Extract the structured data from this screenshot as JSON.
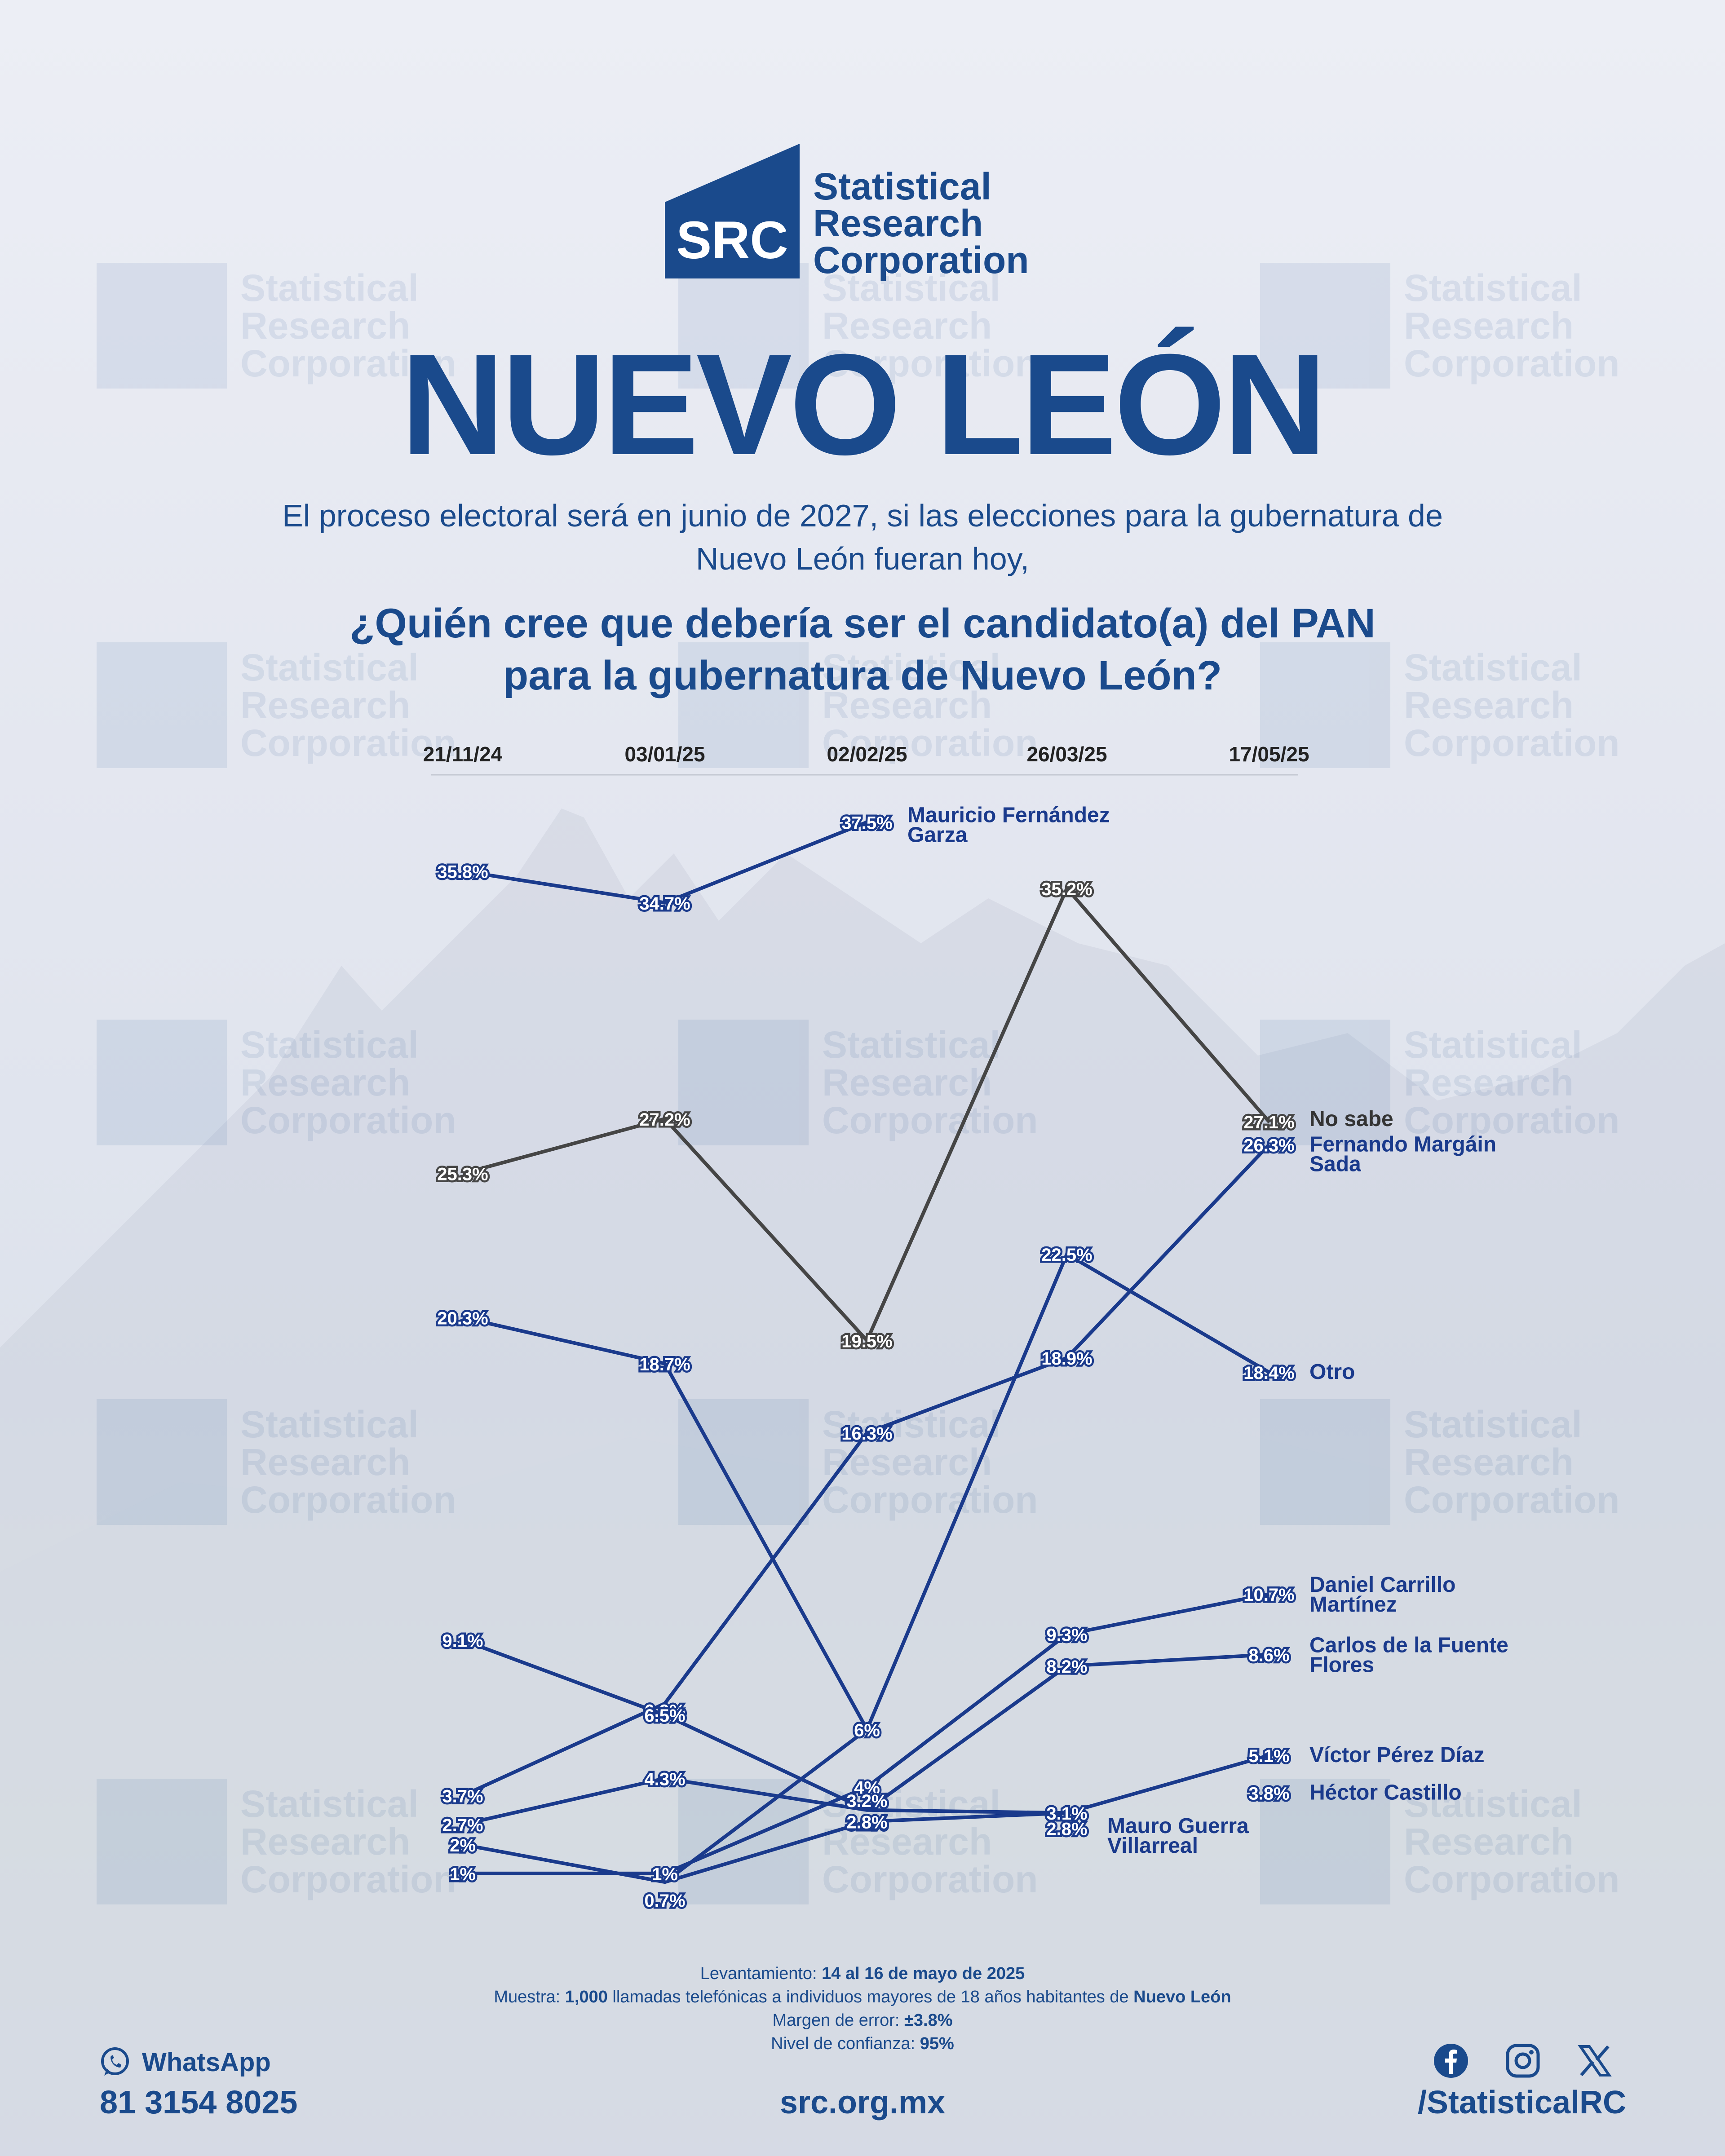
{
  "logo": {
    "mark_text": "SRC",
    "line1": "Statistical",
    "line2": "Research",
    "line3": "Corporation"
  },
  "title": "NUEVO LEÓN",
  "intro": "El proceso electoral será en junio de 2027, si las elecciones para la gubernatura de Nuevo León fueran hoy,",
  "question_line1": "¿Quién cree que debería ser el candidato(a) del PAN",
  "question_line2": "para la gubernatura de Nuevo León?",
  "colors": {
    "brand": "#1a4a8c",
    "candidate": "#1a3a8c",
    "no_sabe": "#454545"
  },
  "chart_data": {
    "type": "line",
    "categories": [
      "21/11/24",
      "03/01/25",
      "02/02/25",
      "26/03/25",
      "17/05/25"
    ],
    "series": [
      {
        "name": "Mauricio Fernández Garza",
        "values": [
          35.8,
          34.7,
          37.5,
          null,
          null
        ],
        "labels": [
          "35.8%",
          "34.7%",
          "37.5%",
          null,
          null
        ],
        "color": "#1a3a8c"
      },
      {
        "name": "No sabe",
        "values": [
          25.3,
          27.2,
          19.5,
          35.2,
          27.1
        ],
        "labels": [
          "25.3%",
          "27.2%",
          "19.5%",
          "35.2%",
          "27.1%"
        ],
        "color": "#454545"
      },
      {
        "name": "Fernando Margáin Sada",
        "values": [
          3.7,
          6.9,
          16.3,
          18.9,
          26.3
        ],
        "labels": [
          "3.7%",
          "6.9%",
          "16.3%",
          "18.9%",
          "26.3%"
        ],
        "color": "#1a3a8c"
      },
      {
        "name": "Otro",
        "values": [
          2,
          0.7,
          6,
          22.5,
          18.4
        ],
        "labels": [
          "2%",
          "0.7%",
          "6%",
          "22.5%",
          "18.4%"
        ],
        "color": "#1a3a8c"
      },
      {
        "name": "Daniel Carrillo Martínez",
        "values": [
          1,
          1,
          4,
          9.3,
          10.7
        ],
        "labels": [
          "1%",
          "1%",
          "4%",
          "9.3%",
          "10.7%"
        ],
        "color": "#1a3a8c"
      },
      {
        "name": "Carlos de la Fuente Flores",
        "values": [
          2.7,
          4.3,
          3.2,
          8.2,
          8.6
        ],
        "labels": [
          "2.7%",
          "4.3%",
          "3.2%",
          "8.2%",
          "8.6%"
        ],
        "color": "#1a3a8c"
      },
      {
        "name": "Víctor Pérez Díaz",
        "values": [
          null,
          0.7,
          2.8,
          3.1,
          5.1
        ],
        "labels": [
          null,
          null,
          "2.8%",
          "3.1%",
          "5.1%"
        ],
        "color": "#1a3a8c"
      },
      {
        "name": "Héctor Castillo",
        "values": [
          null,
          null,
          null,
          null,
          3.8
        ],
        "labels": [
          null,
          null,
          null,
          null,
          "3.8%"
        ],
        "color": "#1a3a8c"
      },
      {
        "name": "Mauro Guerra Villarreal",
        "values": [
          9.1,
          6.5,
          3.2,
          3.1,
          null
        ],
        "labels": [
          "9.1%",
          "6.5%",
          "3.2%",
          "3.1%",
          null
        ],
        "color": "#1a3a8c"
      },
      {
        "name": "",
        "values": [
          20.3,
          18.7,
          6,
          null,
          null
        ],
        "labels": [
          "20.3%",
          "18.7%",
          null,
          null,
          null
        ],
        "color": "#1a3a8c"
      }
    ],
    "extra_value_labels": [
      "2.8%"
    ],
    "ylim": [
      0,
      40
    ]
  },
  "footer": {
    "levantamiento_label": "Levantamiento:",
    "levantamiento_value": "14 al 16 de mayo de 2025",
    "muestra_label": "Muestra:",
    "muestra_count": "1,000",
    "muestra_text": "llamadas telefónicas a individuos mayores de 18 años habitantes de",
    "muestra_place": "Nuevo León",
    "margen_label": "Margen de error:",
    "margen_value": "±3.8%",
    "nivel_label": "Nivel de confianza:",
    "nivel_value": "95%"
  },
  "contact": {
    "whatsapp_label": "WhatsApp",
    "whatsapp_number": "81 3154 8025",
    "website": "src.org.mx",
    "handle": "/StatisticalRC",
    "icons": [
      "whatsapp-icon",
      "facebook-icon",
      "instagram-icon",
      "x-icon"
    ]
  }
}
